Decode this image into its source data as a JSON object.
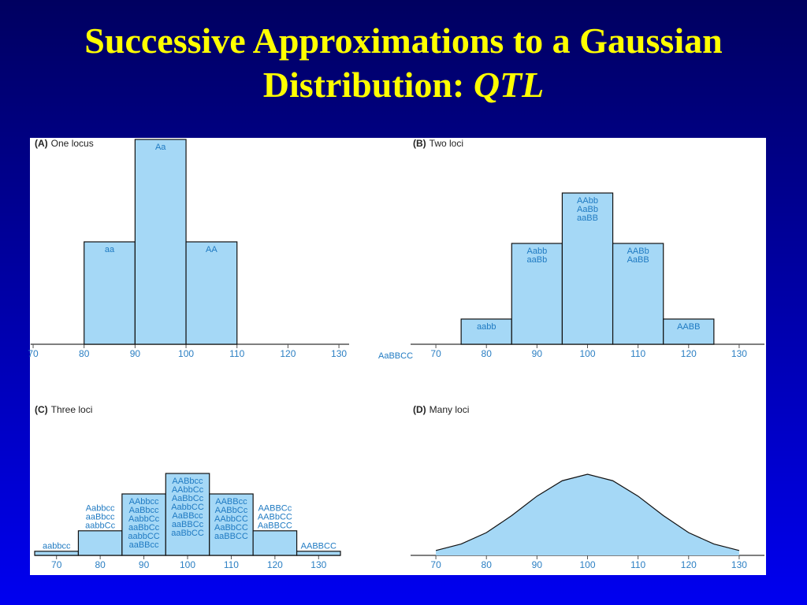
{
  "title": "Successive Approximations to a Gaussian Distribution:",
  "title_emphasis": "QTL",
  "chart_data": [
    {
      "type": "histogram",
      "panel": "(A)",
      "title": "One locus",
      "bins": [
        80,
        90,
        100,
        110
      ],
      "values": [
        1,
        2,
        1
      ],
      "bar_labels": [
        [
          "aa"
        ],
        [
          "Aa"
        ],
        [
          "AA"
        ]
      ],
      "xlim": [
        69.5,
        132
      ],
      "ylim": [
        0,
        2
      ],
      "xticks": [
        70,
        80,
        90,
        100,
        110,
        120,
        130
      ],
      "color": "#a5d8f6"
    },
    {
      "type": "histogram",
      "panel": "(B)",
      "title": "Two loci",
      "bins": [
        75,
        85,
        95,
        105,
        115,
        125
      ],
      "values": [
        1,
        4,
        6,
        4,
        1
      ],
      "bar_labels": [
        [
          "aabb"
        ],
        [
          "Aabb",
          "aaBb"
        ],
        [
          "AAbb",
          "AaBb",
          "aaBB"
        ],
        [
          "AABb",
          "AaBB"
        ],
        [
          "AABB"
        ]
      ],
      "annotation": "AaBBCC",
      "xlim": [
        65,
        135
      ],
      "ylim": [
        0,
        8
      ],
      "xticks": [
        70,
        80,
        90,
        100,
        110,
        120,
        130
      ],
      "color": "#a5d8f6"
    },
    {
      "type": "histogram",
      "panel": "(C)",
      "title": "Three loci",
      "bins": [
        65,
        75,
        85,
        95,
        105,
        115,
        125,
        135
      ],
      "values": [
        1,
        6,
        15,
        20,
        15,
        6,
        1
      ],
      "bar_labels": [
        [
          "aabbcc"
        ],
        [
          "Aabbcc",
          "aaBbcc",
          "aabbCc"
        ],
        [
          "AAbbcc",
          "AaBbcc",
          "AabbCc",
          "aaBbCc",
          "aabbCC",
          "aaBBcc"
        ],
        [
          "AABbcc",
          "AAbbCc",
          "AaBbCc",
          "AabbCC",
          "AaBBcc",
          "aaBBCc",
          "aaBbCC"
        ],
        [
          "AABBcc",
          "AABbCc",
          "AAbbCC",
          "AaBbCC",
          "aaBBCC"
        ],
        [
          "AABBCc",
          "AABbCC",
          "AaBBCC"
        ],
        [
          "AABBCC"
        ]
      ],
      "xlim": [
        65,
        135
      ],
      "ylim": [
        0,
        20
      ],
      "xticks": [
        70,
        80,
        90,
        100,
        110,
        120,
        130
      ],
      "color": "#a5d8f6"
    },
    {
      "type": "area",
      "panel": "(D)",
      "title": "Many loci",
      "x": [
        70,
        75,
        80,
        85,
        90,
        95,
        100,
        105,
        110,
        115,
        120,
        125,
        130
      ],
      "values": [
        0.06,
        0.14,
        0.28,
        0.49,
        0.73,
        0.92,
        1,
        0.92,
        0.73,
        0.49,
        0.28,
        0.14,
        0.06
      ],
      "xlim": [
        65,
        135
      ],
      "ylim": [
        0,
        1
      ],
      "xticks": [
        70,
        80,
        90,
        100,
        110,
        120,
        130
      ],
      "color": "#a5d8f6"
    }
  ]
}
